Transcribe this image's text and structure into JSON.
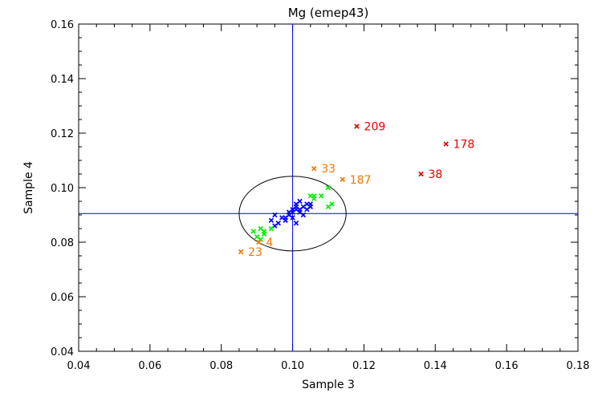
{
  "chart_data": {
    "type": "scatter",
    "title": "Mg (emep43)",
    "xlabel": "Sample 3",
    "ylabel": "Sample 4",
    "xlim": [
      0.04,
      0.18
    ],
    "ylim": [
      0.04,
      0.16
    ],
    "xticks": [
      "0.04",
      "0.06",
      "0.08",
      "0.10",
      "0.12",
      "0.14",
      "0.16",
      "0.18"
    ],
    "yticks": [
      "0.04",
      "0.06",
      "0.08",
      "0.10",
      "0.12",
      "0.14",
      "0.16"
    ],
    "reference": {
      "x": 0.1,
      "y": 0.0905
    },
    "ellipse": {
      "center": [
        0.1,
        0.0905
      ],
      "semi_x": 0.015,
      "semi_y": 0.0137
    },
    "colors": {
      "blue": "#0000ff",
      "green": "#00ee00",
      "orange": "#f07800",
      "red": "#ee0000",
      "axis": "#000000"
    },
    "series": [
      {
        "name": "blue",
        "color": "#0000ff",
        "points": [
          [
            0.094,
            0.088
          ],
          [
            0.095,
            0.086
          ],
          [
            0.096,
            0.087
          ],
          [
            0.095,
            0.09
          ],
          [
            0.097,
            0.089
          ],
          [
            0.098,
            0.089
          ],
          [
            0.099,
            0.09
          ],
          [
            0.099,
            0.091
          ],
          [
            0.1,
            0.091
          ],
          [
            0.1,
            0.092
          ],
          [
            0.101,
            0.092
          ],
          [
            0.101,
            0.093
          ],
          [
            0.102,
            0.091
          ],
          [
            0.102,
            0.092
          ],
          [
            0.103,
            0.093
          ],
          [
            0.103,
            0.09
          ],
          [
            0.104,
            0.094
          ],
          [
            0.104,
            0.092
          ],
          [
            0.105,
            0.093
          ],
          [
            0.105,
            0.094
          ],
          [
            0.098,
            0.088
          ],
          [
            0.1,
            0.089
          ],
          [
            0.101,
            0.087
          ],
          [
            0.102,
            0.095
          ],
          [
            0.101,
            0.094
          ]
        ]
      },
      {
        "name": "green",
        "color": "#00ee00",
        "points": [
          [
            0.089,
            0.084
          ],
          [
            0.09,
            0.082
          ],
          [
            0.091,
            0.085
          ],
          [
            0.091,
            0.081
          ],
          [
            0.092,
            0.083
          ],
          [
            0.092,
            0.084
          ],
          [
            0.094,
            0.085
          ],
          [
            0.105,
            0.097
          ],
          [
            0.106,
            0.096
          ],
          [
            0.106,
            0.097
          ],
          [
            0.108,
            0.097
          ],
          [
            0.11,
            0.1
          ],
          [
            0.11,
            0.093
          ],
          [
            0.111,
            0.094
          ]
        ]
      },
      {
        "name": "orange",
        "color": "#f07800",
        "points": [
          {
            "x": 0.0855,
            "y": 0.0765,
            "label": "23"
          },
          {
            "x": 0.0905,
            "y": 0.08,
            "label": "4"
          },
          {
            "x": 0.106,
            "y": 0.107,
            "label": "33"
          },
          {
            "x": 0.114,
            "y": 0.103,
            "label": "187"
          }
        ]
      },
      {
        "name": "red",
        "color": "#ee0000",
        "points": [
          {
            "x": 0.118,
            "y": 0.1225,
            "label": "209"
          },
          {
            "x": 0.143,
            "y": 0.116,
            "label": "178"
          },
          {
            "x": 0.136,
            "y": 0.105,
            "label": "38"
          }
        ]
      }
    ]
  }
}
